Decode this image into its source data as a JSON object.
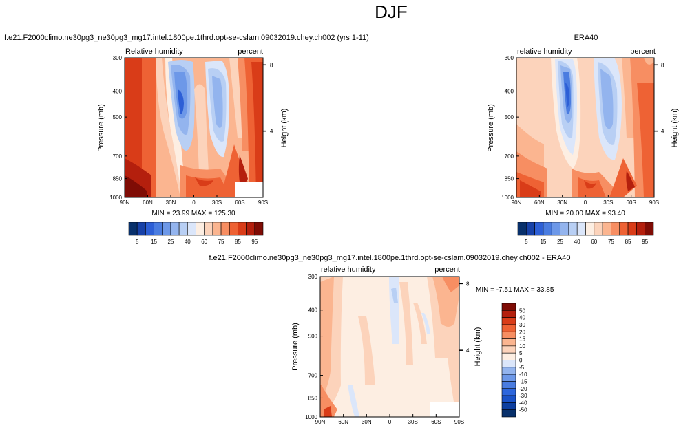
{
  "page": {
    "title": "DJF"
  },
  "panels": [
    {
      "id": "model",
      "left_title": "f.e21.F2000climo.ne30pg3_ne30pg3_mg17.intel.1800pe.1thrd.opt-se-cslam.09032019.chey.ch002 (yrs 1-11)",
      "var_label": "Relative humidity",
      "units": "percent",
      "y_label": "Pressure (mb)",
      "right_label": "Height (km)",
      "stats": "MIN =  23.99  MAX = 125.30"
    },
    {
      "id": "obs",
      "center_title": "ERA40",
      "var_label": "relative humidity",
      "units": "percent",
      "y_label": "Pressure (mb)",
      "right_label": "Height (km)",
      "stats": "MIN =  20.00  MAX =  93.40"
    },
    {
      "id": "diff",
      "center_title": "f.e21.F2000climo.ne30pg3_ne30pg3_mg17.intel.1800pe.1thrd.opt-se-cslam.09032019.chey.ch002 - ERA40",
      "var_label": "relative humidity",
      "units": "percent",
      "y_label": "Pressure (mb)",
      "right_label": "Height (km)",
      "stats": "MIN =  -7.51  MAX =  33.85"
    }
  ],
  "chart_data": [
    {
      "type": "heatmap",
      "name": "model",
      "x_ticks": [
        "90N",
        "60N",
        "30N",
        "0",
        "30S",
        "60S",
        "90S"
      ],
      "y_ticks": [
        300,
        400,
        500,
        700,
        850,
        1000
      ],
      "right_ticks": [
        8,
        4
      ],
      "levels": [
        5,
        10,
        15,
        20,
        25,
        30,
        40,
        50,
        60,
        70,
        75,
        80,
        85,
        90,
        95
      ],
      "colorbar_labels": [
        "5",
        "15",
        "25",
        "40",
        "60",
        "75",
        "85",
        "95"
      ],
      "colors": [
        "#08306b",
        "#1741a8",
        "#2d5fd6",
        "#4a7ce0",
        "#6d98e8",
        "#93b4ee",
        "#b8cff4",
        "#dbe6fa",
        "#fdeee2",
        "#fcd3bb",
        "#fbb590",
        "#f78e62",
        "#ee6234",
        "#d93c18",
        "#b41f0d",
        "#7f0c05"
      ],
      "min": 23.99,
      "max": 125.3
    },
    {
      "type": "heatmap",
      "name": "obs",
      "x_ticks": [
        "90N",
        "60N",
        "30N",
        "0",
        "30S",
        "60S",
        "90S"
      ],
      "y_ticks": [
        300,
        400,
        500,
        700,
        850,
        1000
      ],
      "right_ticks": [
        8,
        4
      ],
      "levels": [
        5,
        10,
        15,
        20,
        25,
        30,
        40,
        50,
        60,
        70,
        75,
        80,
        85,
        90,
        95
      ],
      "colorbar_labels": [
        "5",
        "15",
        "25",
        "40",
        "60",
        "75",
        "85",
        "95"
      ],
      "colors": [
        "#08306b",
        "#1741a8",
        "#2d5fd6",
        "#4a7ce0",
        "#6d98e8",
        "#93b4ee",
        "#b8cff4",
        "#dbe6fa",
        "#fdeee2",
        "#fcd3bb",
        "#fbb590",
        "#f78e62",
        "#ee6234",
        "#d93c18",
        "#b41f0d",
        "#7f0c05"
      ],
      "min": 20.0,
      "max": 93.4
    },
    {
      "type": "heatmap",
      "name": "diff",
      "x_ticks": [
        "90N",
        "60N",
        "30N",
        "0",
        "30S",
        "60S",
        "90S"
      ],
      "y_ticks": [
        300,
        400,
        500,
        700,
        850,
        1000
      ],
      "right_ticks": [
        8,
        4
      ],
      "levels": [
        -50,
        -40,
        -30,
        -20,
        -15,
        -10,
        -5,
        0,
        5,
        10,
        15,
        20,
        30,
        40,
        50
      ],
      "colorbar_labels": [
        "50",
        "40",
        "30",
        "20",
        "15",
        "10",
        "5",
        "0",
        "-5",
        "-10",
        "-15",
        "-20",
        "-30",
        "-40",
        "-50"
      ],
      "colors": [
        "#08306b",
        "#0d3fa0",
        "#1a52c8",
        "#2d66dd",
        "#4a7ce0",
        "#6d98e8",
        "#93b4ee",
        "#dbe6fa",
        "#fdeee2",
        "#fcd3bb",
        "#fbb590",
        "#f78e62",
        "#ee6234",
        "#d93c18",
        "#b41f0d",
        "#7f0c05"
      ],
      "min": -7.51,
      "max": 33.85
    }
  ]
}
